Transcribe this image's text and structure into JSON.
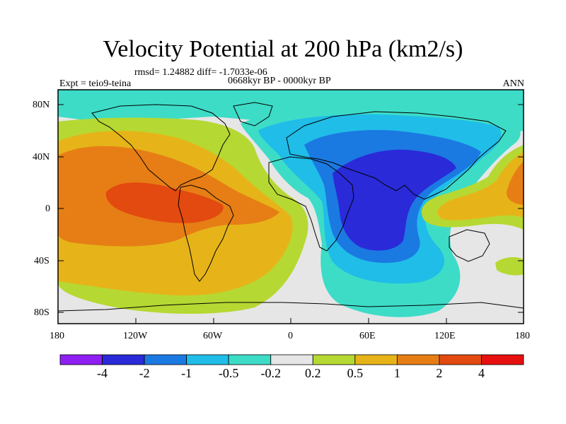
{
  "title": "Velocity Potential at 200 hPa (km2/s)",
  "stats_line": "rmsd= 1.24882 diff= -1.7033e-06",
  "experiment": "Expt = teio9-teina",
  "period": "0668kyr BP - 0000kyr BP",
  "season": "ANN",
  "y_axis_labels": [
    "80N",
    "40N",
    "0",
    "40S",
    "80S"
  ],
  "x_axis_labels": [
    "180",
    "120W",
    "60W",
    "0",
    "60E",
    "120E",
    "180"
  ],
  "colorbar": {
    "colors": [
      "#8d1ff2",
      "#2a2ad8",
      "#1b79e2",
      "#20bde8",
      "#3ddcc7",
      "#e6e6e6",
      "#b6d832",
      "#e6b419",
      "#e67e15",
      "#e34a0f",
      "#e6100e"
    ],
    "tick_labels": [
      "-4",
      "-2",
      "-1",
      "-0.5",
      "-0.2",
      "0.2",
      "0.5",
      "1",
      "2",
      "4"
    ]
  },
  "palette": {
    "neg_weak": "#3ddcc7",
    "neg_mid": "#20bde8",
    "neg_strong": "#1b79e2",
    "neg_max": "#2a2ad8",
    "neutral": "#e6e6e6",
    "pos_weak": "#b6d832",
    "pos_mid": "#e6b419",
    "pos_strong": "#e67e15",
    "pos_max": "#e34a0f"
  }
}
